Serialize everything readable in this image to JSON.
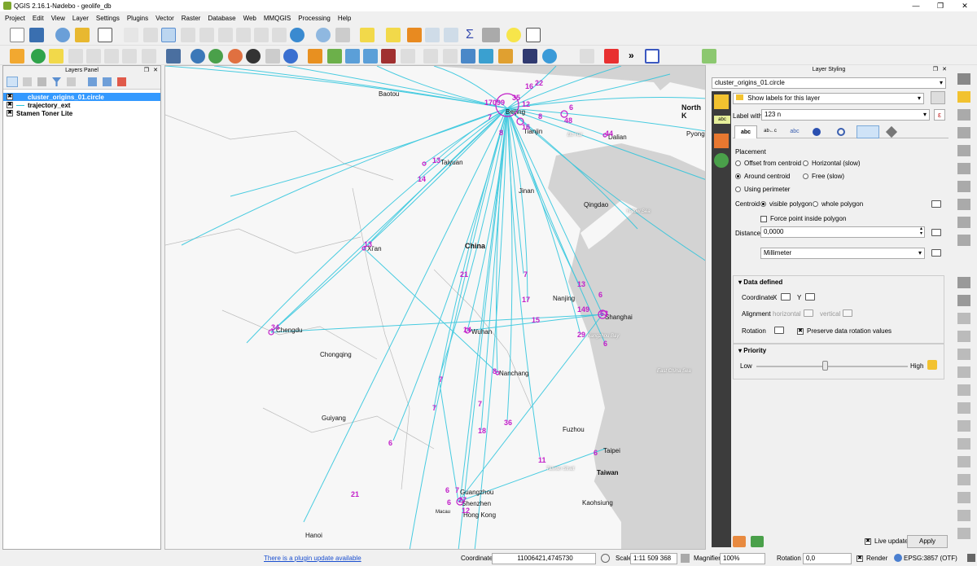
{
  "window": {
    "title": "QGIS 2.16.1-Nødebo - geolife_db",
    "minimize": "—",
    "maximize": "❐",
    "close": "✕"
  },
  "menu": [
    "Project",
    "Edit",
    "View",
    "Layer",
    "Settings",
    "Plugins",
    "Vector",
    "Raster",
    "Database",
    "Web",
    "MMQGIS",
    "Processing",
    "Help"
  ],
  "toolbar": {
    "overflow": "»"
  },
  "layers_panel": {
    "title": "Layers Panel",
    "layers": [
      {
        "name": "cluster_origins_01.circle",
        "checked": "✖",
        "selected": true
      },
      {
        "name": "trajectory_ext",
        "checked": "✖",
        "selected": false
      },
      {
        "name": "Stamen Toner Lite",
        "checked": "✖",
        "selected": false
      }
    ]
  },
  "map": {
    "places": [
      "Baotou",
      "Beijing",
      "Tianjin",
      "Dalian",
      "Taiyuan",
      "Jinan",
      "Qingdao",
      "Xi'an",
      "China",
      "Nanjing",
      "Shanghai",
      "Chengdu",
      "Wuhan",
      "Chongqing",
      "Nanchang",
      "Guiyang",
      "Fuzhou",
      "Taipei",
      "Taiwan",
      "Guangzhou",
      "Shenzhen",
      "Hong Kong",
      "Macau",
      "Kaohsiung",
      "Hanoi",
      "North K",
      "Pyong",
      "Bo Hai",
      "Yellow Sea",
      "East China Sea",
      "Taiwan Strait",
      "Hangzhou Bay"
    ],
    "cluster_labels": [
      "17099",
      "35",
      "16",
      "22",
      "12",
      "7",
      "8",
      "16",
      "6",
      "8",
      "48",
      "44",
      "13",
      "14",
      "13",
      "21",
      "7",
      "13",
      "6",
      "17",
      "149",
      "63",
      "15",
      "14",
      "29",
      "6",
      "8",
      "7",
      "7",
      "7",
      "18",
      "36",
      "6",
      "11",
      "6",
      "6",
      "7",
      "27",
      "6",
      "12",
      "21",
      "34"
    ]
  },
  "styling": {
    "title": "Layer Styling",
    "layer_select": "cluster_origins_01.circle",
    "label_mode": "Show labels for this layer",
    "label_with_label": "Label with",
    "label_with_value": "123  n",
    "tabs": [
      "abc",
      "ab←c",
      "abc",
      "",
      "",
      "",
      ""
    ],
    "placement_title": "Placement",
    "opt_offset": "Offset from centroid",
    "opt_horizontal": "Horizontal (slow)",
    "opt_around": "Around centroid",
    "opt_free": "Free (slow)",
    "opt_perimeter": "Using perimeter",
    "centroid_label": "Centroid",
    "opt_visible_polygon": "visible polygon",
    "opt_whole_polygon": "whole polygon",
    "force_point": "Force point inside polygon",
    "distance_label": "Distance",
    "distance_value": "0,0000",
    "unit_value": "Millimeter",
    "data_defined_title": "Data defined",
    "coordinate_label": "Coordinate",
    "x_label": "X",
    "y_label": "Y",
    "alignment_label": "Alignment",
    "horizontal_label": "horizontal",
    "vertical_label": "vertical",
    "rotation_label": "Rotation",
    "preserve_rotation": "Preserve data rotation values",
    "priority_title": "Priority",
    "priority_low": "Low",
    "priority_high": "High",
    "priority_value": 0.45,
    "live_update": "Live update",
    "apply": "Apply",
    "check_mark": "✖"
  },
  "status": {
    "plugin_update": "There is a plugin update available",
    "coordinate_label": "Coordinate",
    "coordinate_value": "11006421,4745730",
    "scale_label": "Scale",
    "scale_value": "1:11 509 368",
    "magnifier_label": "Magnifier",
    "magnifier_value": "100%",
    "rotation_label": "Rotation",
    "rotation_value": "0,0",
    "render_label": "Render",
    "render_check": "✖",
    "crs": "EPSG:3857 (OTF)"
  },
  "colors": {
    "accent": "#3399ff",
    "trajectory": "#29c4dc",
    "cluster": "#c21ec9",
    "land": "#f7f7f7",
    "sea": "#d3d3d3",
    "sidebar": "#3c3c3c"
  }
}
